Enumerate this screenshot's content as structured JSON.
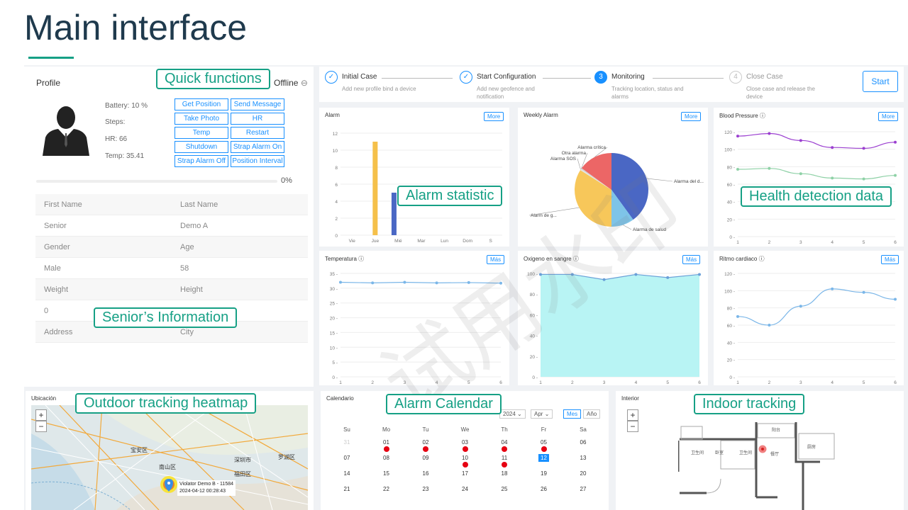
{
  "slide": {
    "title": "Main interface"
  },
  "callouts": {
    "quick_functions": "Quick functions",
    "alarm_statistic": "Alarm statistic",
    "health_detection": "Health detection data",
    "senior_info": "Senior’s Information",
    "outdoor": "Outdoor tracking heatmap",
    "alarm_calendar": "Alarm Calendar",
    "indoor": "Indoor tracking"
  },
  "profile": {
    "title": "Profile",
    "status": "Offline",
    "battery": "Battery:  10 %",
    "steps": "Steps:",
    "hr": "HR:  66",
    "temp": "Temp:  35.41",
    "progress_label": "0%",
    "progress": 0,
    "quick_buttons": [
      "Get Position",
      "Send Message",
      "Take Photo",
      "HR",
      "Temp",
      "Restart",
      "Shutdown",
      "Strap Alarm On",
      "Strap Alarm Off",
      "Position Interval"
    ],
    "table": [
      [
        "First Name",
        "Last Name"
      ],
      [
        "Senior",
        "Demo A"
      ],
      [
        "Gender",
        "Age"
      ],
      [
        "Male",
        "58"
      ],
      [
        "Weight",
        "Height"
      ],
      [
        "0",
        "0"
      ],
      [
        "Address",
        "City"
      ]
    ]
  },
  "steps": [
    {
      "num": "✓",
      "title": "Initial Case",
      "desc": "Add new profile bind a device",
      "state": "done"
    },
    {
      "num": "✓",
      "title": "Start Configuration",
      "desc": "Add new geofence and notification",
      "state": "done"
    },
    {
      "num": "3",
      "title": "Monitoring",
      "desc": "Tracking location, status and alarms",
      "state": "active"
    },
    {
      "num": "4",
      "title": "Close Case",
      "desc": "Close case and release the device",
      "state": "pending"
    }
  ],
  "start_button": "Start",
  "more_label": "More",
  "mas_label": "Más",
  "colors": {
    "accent": "#16a085",
    "primary": "#1890ff",
    "alarm_dot": "#e60012"
  },
  "charts": {
    "alarm": {
      "title": "Alarm"
    },
    "weekly": {
      "title": "Weekly Alarm"
    },
    "bp": {
      "title": "Blood Pressure"
    },
    "temp": {
      "title": "Temperatura"
    },
    "oxy": {
      "title": "Oxigeno en sangre"
    },
    "hr": {
      "title": "Ritmo cardiaco"
    }
  },
  "chart_data": [
    {
      "type": "bar",
      "title": "Alarm",
      "categories": [
        "Vie",
        "Jue",
        "Mié",
        "Mar",
        "Lun",
        "Dom",
        "S"
      ],
      "series": [
        {
          "values": [
            0,
            11,
            0,
            0,
            0,
            0,
            0
          ],
          "color": "#f5c04a"
        },
        {
          "values": [
            0,
            0,
            5,
            0,
            0,
            0,
            0
          ],
          "color": "#4a67c4"
        }
      ],
      "yticks": [
        0,
        2,
        4,
        6,
        8,
        10,
        12
      ],
      "ylim": [
        0,
        12
      ]
    },
    {
      "type": "pie",
      "title": "Weekly Alarm",
      "labels": [
        "Alarma del d...",
        "Alarma de salud",
        "Alarm de g...",
        "Alarma SOS",
        "Otra alarma",
        "Alarma crítica"
      ],
      "values": [
        40,
        10,
        34,
        0.5,
        0.5,
        15
      ],
      "colors": [
        "#4a67c4",
        "#7ec4e8",
        "#f7c75a",
        "#e4e4e4",
        "#d0d0d0",
        "#ec6666"
      ]
    },
    {
      "type": "line",
      "title": "Blood Pressure",
      "x": [
        1,
        2,
        3,
        4,
        5,
        6
      ],
      "series": [
        {
          "values": [
            115,
            118,
            110,
            102,
            101,
            108
          ],
          "color": "#9b3fd0"
        },
        {
          "values": [
            77,
            78,
            72,
            67,
            66,
            70
          ],
          "color": "#8ed1a6"
        }
      ],
      "yticks": [
        0,
        20,
        40,
        60,
        80,
        100,
        120
      ],
      "ylim": [
        0,
        120
      ]
    },
    {
      "type": "line",
      "title": "Temperatura",
      "x": [
        1,
        2,
        3,
        4,
        5,
        6
      ],
      "series": [
        {
          "values": [
            32,
            31.8,
            32,
            31.8,
            31.9,
            31.7
          ],
          "color": "#7ab6e8"
        }
      ],
      "yticks": [
        0,
        5,
        10,
        15,
        20,
        25,
        30,
        35
      ],
      "ylim": [
        0,
        35
      ]
    },
    {
      "type": "area",
      "title": "Oxigeno en sangre",
      "x": [
        1,
        2,
        3,
        4,
        5,
        6
      ],
      "series": [
        {
          "values": [
            99,
            99,
            94,
            99,
            96,
            99
          ],
          "color": "#6aa0d8",
          "fill": "#b8f4f4"
        }
      ],
      "yticks": [
        0,
        20,
        40,
        60,
        80,
        100
      ],
      "ylim": [
        0,
        100
      ]
    },
    {
      "type": "line",
      "title": "Ritmo cardiaco",
      "x": [
        1,
        2,
        3,
        4,
        5,
        6
      ],
      "series": [
        {
          "values": [
            70,
            60,
            82,
            102,
            98,
            90
          ],
          "color": "#7ab6e8"
        }
      ],
      "yticks": [
        0,
        20,
        40,
        60,
        80,
        100,
        120
      ],
      "ylim": [
        0,
        120
      ]
    }
  ],
  "calendar": {
    "title": "Calendario",
    "year": "2024",
    "month": "Apr",
    "mes": "Mes",
    "ano": "Año",
    "days": [
      "Su",
      "Mo",
      "Tu",
      "We",
      "Th",
      "Fr",
      "Sa"
    ],
    "rows": [
      [
        "31",
        "01",
        "02",
        "03",
        "04",
        "05",
        "06"
      ],
      [
        "07",
        "08",
        "09",
        "10",
        "11",
        "12",
        "13"
      ],
      [
        "14",
        "15",
        "16",
        "17",
        "18",
        "19",
        "20"
      ],
      [
        "21",
        "22",
        "23",
        "24",
        "25",
        "26",
        "27"
      ]
    ],
    "alarm_days": [
      "01",
      "02",
      "03",
      "04",
      "05",
      "10",
      "11"
    ],
    "selected": "12"
  },
  "outdoor": {
    "title": "Ubicación",
    "labels": [
      "宝安区",
      "南山区",
      "深圳市",
      "福田区",
      "罗湖区"
    ],
    "marker_line1": "Violator Demo B - 11584",
    "marker_line2": "2024-04-12 00:28:43"
  },
  "indoor": {
    "title": "Interior",
    "rooms": [
      "阳台",
      "厨房",
      "卫生间",
      "卧室",
      "卫生间",
      "餐厅"
    ]
  },
  "watermark": "试用水印"
}
